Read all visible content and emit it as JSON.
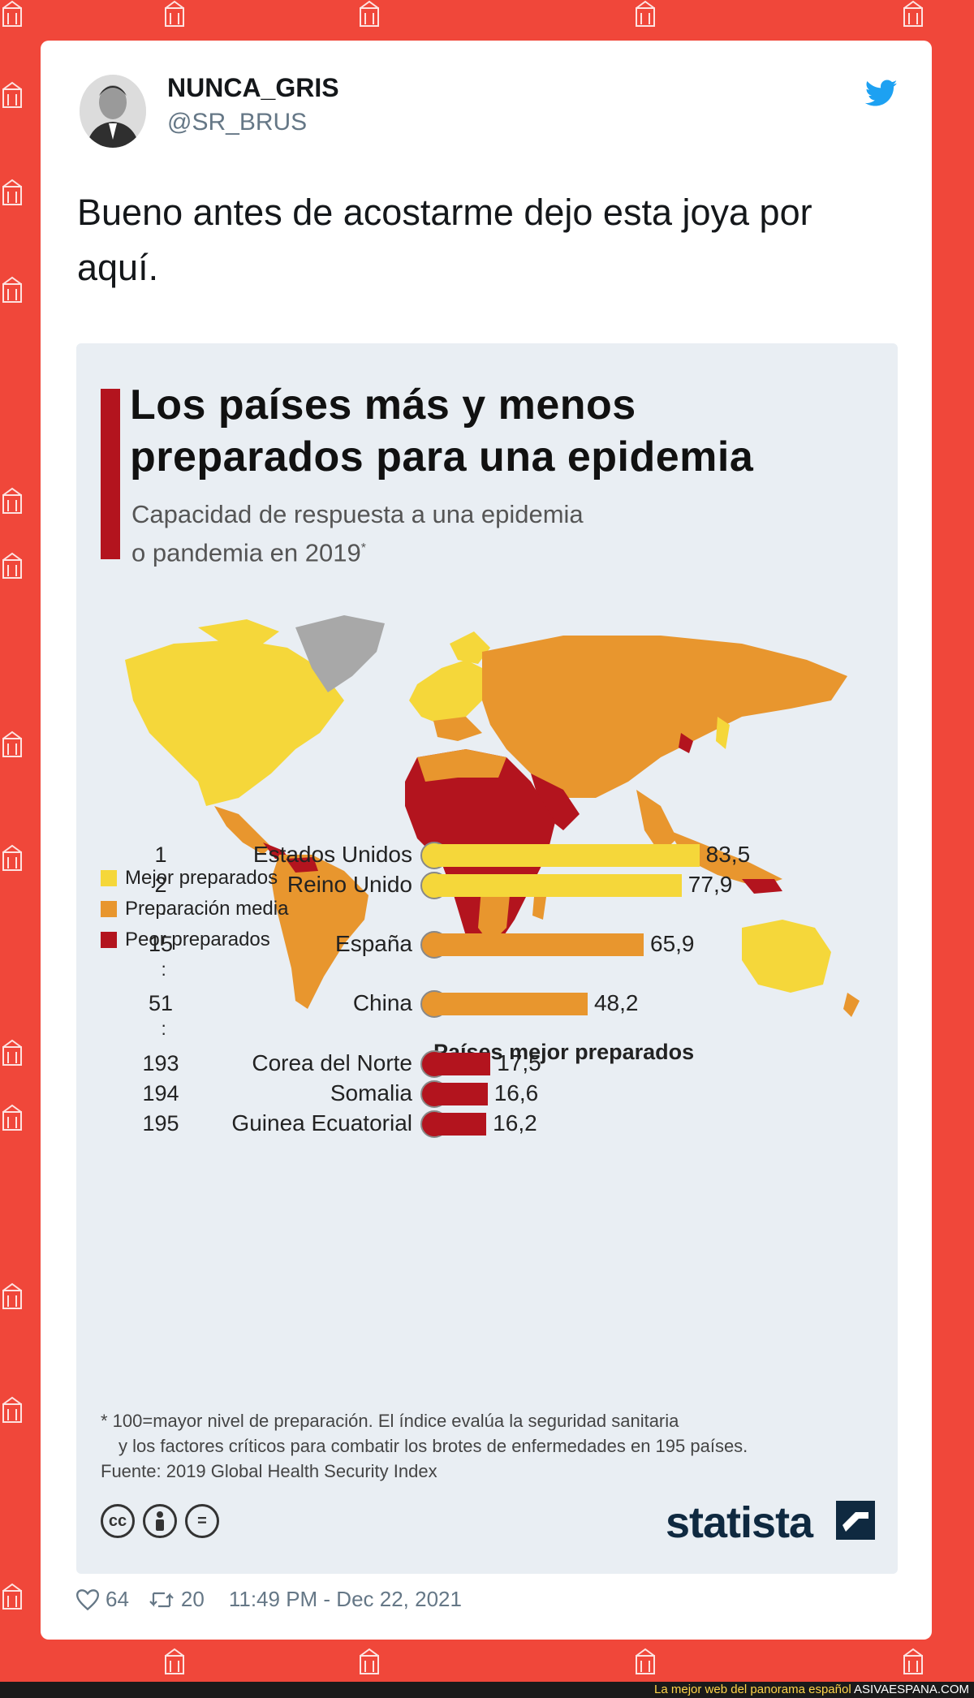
{
  "tweet": {
    "display_name": "NUNCA_GRIS",
    "handle": "@SR_BRUS",
    "text": "Bueno antes de acostarme dejo esta joya por aquí.",
    "likes": "64",
    "retweets": "20",
    "timestamp": "11:49 PM - Dec 22, 2021"
  },
  "infographic": {
    "title_line1": "Los países más y menos",
    "title_line2": "preparados para una epidemia",
    "subtitle_line1": "Capacidad de respuesta a una epidemia",
    "subtitle_line2": "o pandemia en 2019",
    "subtitle_mark": "*",
    "legend": [
      {
        "label": "Mejor preparados",
        "color": "#f5d73a"
      },
      {
        "label": "Preparación media",
        "color": "#e8962e"
      },
      {
        "label": "Peor preparados",
        "color": "#b3141e"
      }
    ],
    "bars_title": "Países mejor preparados",
    "footnote_line1": "* 100=mayor nivel de preparación. El índice evalúa la seguridad sanitaria",
    "footnote_line2": "y los factores críticos para combatir los brotes de enfermedades en 195 países.",
    "source": "Fuente: 2019 Global Health Security Index",
    "brand": "statista"
  },
  "chart_data": {
    "type": "bar",
    "title": "Países mejor preparados",
    "categories": [
      "Estados Unidos",
      "Reino Unido",
      "España",
      "China",
      "Corea del Norte",
      "Somalia",
      "Guinea Ecuatorial"
    ],
    "ranks": [
      "1",
      "2",
      "15",
      "51",
      "193",
      "194",
      "195"
    ],
    "values": [
      83.5,
      77.9,
      65.9,
      48.2,
      17.5,
      16.6,
      16.2
    ],
    "value_labels": [
      "83,5",
      "77,9",
      "65,9",
      "48,2",
      "17,5",
      "16,6",
      "16,2"
    ],
    "colors": [
      "#f5d73a",
      "#f5d73a",
      "#e8962e",
      "#e8962e",
      "#b3141e",
      "#b3141e",
      "#b3141e"
    ],
    "xlim": [
      0,
      100
    ]
  },
  "footer": {
    "tagline": "La mejor web del panorama español",
    "site": "ASIVAESPANA.COM"
  },
  "colors": {
    "background": "#f0473a",
    "accent": "#b3141e",
    "twitter_blue": "#1da1f2"
  }
}
